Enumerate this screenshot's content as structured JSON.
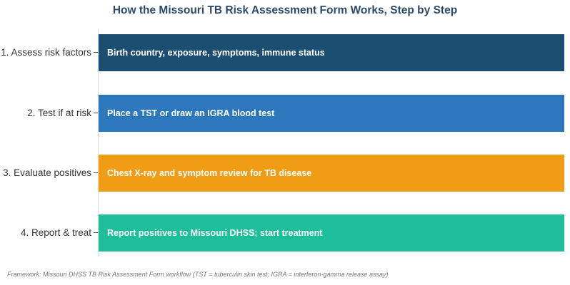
{
  "title": "How the Missouri TB Risk Assessment Form Works, Step by Step",
  "steps": [
    {
      "label": "1. Assess risk factors",
      "text": "Birth country, exposure, symptoms, immune status",
      "color": "#1c4e72"
    },
    {
      "label": "2. Test if at risk",
      "text": "Place a TST or draw an IGRA blood test",
      "color": "#2d77bd"
    },
    {
      "label": "3. Evaluate positives",
      "text": "Chest X-ray and symptom review for TB disease",
      "color": "#f09c14"
    },
    {
      "label": "4. Report & treat",
      "text": "Report positives to Missouri DHSS; start treatment",
      "color": "#1dbf9a"
    }
  ],
  "footnote": "Framework: Missouri DHSS TB Risk Assessment Form workflow (TST = tuberculin skin test; IGRA = interferon-gamma release assay)"
}
